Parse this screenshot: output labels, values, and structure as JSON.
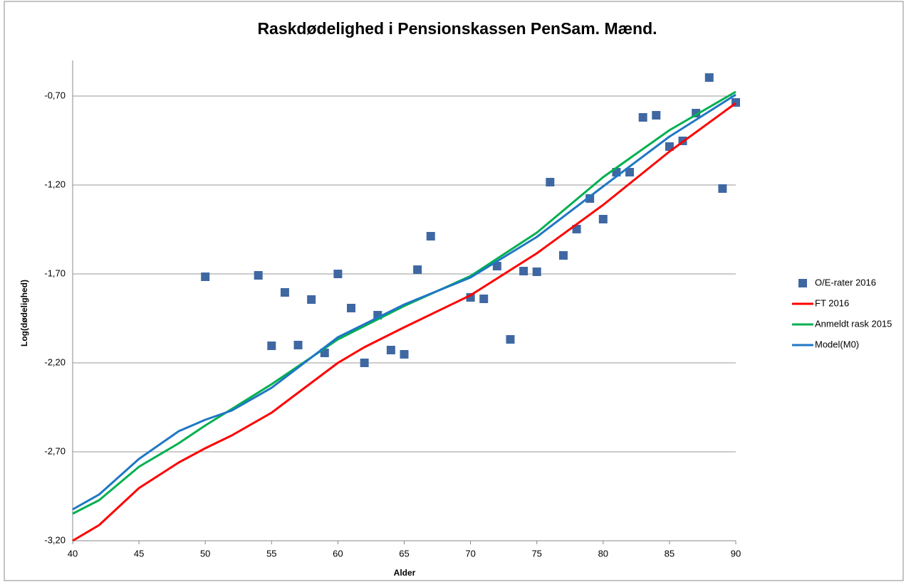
{
  "chart_data": {
    "type": "combo",
    "title": "Raskdødelighed i Pensionskassen PenSam. Mænd.",
    "x_label": "Alder",
    "y_label": "Log(dødelighed)",
    "xlim": [
      40,
      90
    ],
    "xticks": [
      40,
      45,
      50,
      55,
      60,
      65,
      70,
      75,
      80,
      85,
      90
    ],
    "ylim": [
      -3.2,
      -0.5
    ],
    "yticks": [
      {
        "value": -3.2,
        "label": "-3,20"
      },
      {
        "value": -2.7,
        "label": "-2,70"
      },
      {
        "value": -2.2,
        "label": "-2,20"
      },
      {
        "value": -1.7,
        "label": "-1,70"
      },
      {
        "value": -1.2,
        "label": "-1,20"
      },
      {
        "value": -0.7,
        "label": "-0,70"
      }
    ],
    "grid": true,
    "legend": "right",
    "series": [
      {
        "name": "O/E-rater 2016",
        "type": "scatter",
        "color": "#3f68a3",
        "x": [
          50,
          54,
          55,
          56,
          57,
          58,
          59,
          60,
          61,
          62,
          63,
          64,
          65,
          66,
          67,
          70,
          71,
          72,
          73,
          74,
          75,
          76,
          77,
          78,
          79,
          80,
          81,
          82,
          83,
          84,
          85,
          86,
          87,
          88,
          89,
          90
        ],
        "values": [
          -1.716,
          -1.708,
          -2.104,
          -1.804,
          -2.1,
          -1.844,
          -2.144,
          -1.7,
          -1.892,
          -2.2,
          -1.932,
          -2.128,
          -2.152,
          -1.676,
          -1.488,
          -1.832,
          -1.84,
          -1.656,
          -2.068,
          -1.684,
          -1.688,
          -1.184,
          -1.596,
          -1.448,
          -1.276,
          -1.392,
          -1.128,
          -1.128,
          -0.82,
          -0.808,
          -0.984,
          -0.952,
          -0.796,
          -0.596,
          -1.22,
          -0.736
        ]
      },
      {
        "name": "FT 2016",
        "type": "line",
        "color": "#ff0000",
        "x": [
          40,
          42,
          45,
          48,
          50,
          52,
          55,
          57,
          60,
          62,
          65,
          70,
          75,
          80,
          85,
          90
        ],
        "values": [
          -3.2,
          -3.112,
          -2.904,
          -2.76,
          -2.68,
          -2.608,
          -2.48,
          -2.368,
          -2.2,
          -2.112,
          -2.0,
          -1.82,
          -1.584,
          -1.312,
          -1.012,
          -0.74
        ]
      },
      {
        "name": "Anmeldt rask 2015",
        "type": "line",
        "color": "#00b050",
        "x": [
          40,
          42,
          45,
          48,
          50,
          55,
          60,
          65,
          70,
          75,
          80,
          85,
          90
        ],
        "values": [
          -3.048,
          -2.972,
          -2.784,
          -2.652,
          -2.552,
          -2.32,
          -2.068,
          -1.88,
          -1.712,
          -1.468,
          -1.156,
          -0.892,
          -0.676
        ]
      },
      {
        "name": "Model(M0)",
        "type": "line",
        "color": "#1f77c4",
        "x": [
          40,
          42,
          45,
          48,
          50,
          52,
          55,
          60,
          65,
          70,
          75,
          80,
          85,
          90
        ],
        "values": [
          -3.024,
          -2.94,
          -2.74,
          -2.584,
          -2.52,
          -2.468,
          -2.34,
          -2.056,
          -1.872,
          -1.72,
          -1.492,
          -1.208,
          -0.928,
          -0.692
        ]
      }
    ]
  }
}
